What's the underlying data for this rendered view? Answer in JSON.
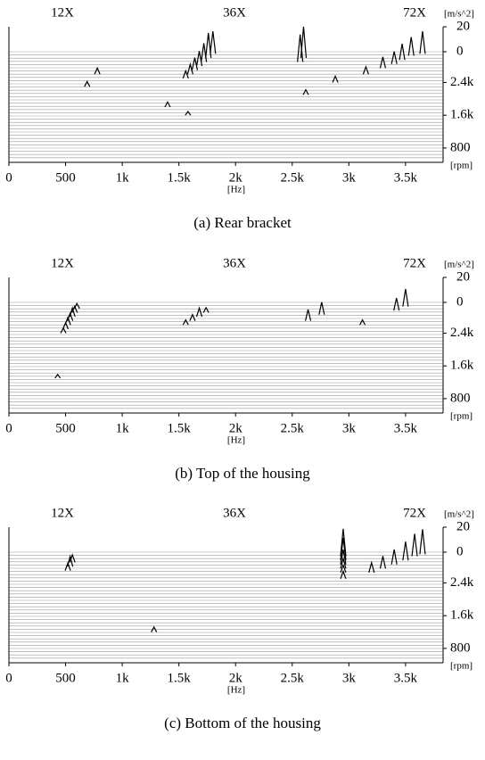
{
  "chart_data": [
    {
      "type": "waterfall",
      "caption": "(a)  Rear  bracket",
      "x_label": "[Hz]",
      "y_label": "[rpm]",
      "y2_label": "[m/s^2]",
      "order_labels": [
        "12X",
        "36X",
        "72X"
      ],
      "xlim": [
        0,
        3800
      ],
      "xticks": [
        0,
        500,
        {
          "value": 1000,
          "label": "1k"
        },
        {
          "value": 1500,
          "label": "1.5k"
        },
        {
          "value": 2000,
          "label": "2k"
        },
        {
          "value": 2500,
          "label": "2.5k"
        },
        {
          "value": 3000,
          "label": "3k"
        },
        {
          "value": 3500,
          "label": "3.5k"
        }
      ],
      "ylim": [
        450,
        3150
      ],
      "yticks": [
        800,
        {
          "value": 1600,
          "label": "1.6k"
        },
        {
          "value": 2400,
          "label": "2.4k"
        }
      ],
      "y2lim": [
        0,
        20
      ],
      "y2ticks": [
        0,
        20
      ],
      "peaks": {
        "rpm": [
          3100,
          3000,
          2900,
          2800,
          2700,
          2600,
          2500,
          3100,
          3050,
          2950,
          2850,
          2750,
          2600,
          2400,
          2100,
          1800,
          1600,
          3000,
          2900,
          2600,
          2300
        ],
        "hz": [
          1800,
          1760,
          1720,
          1680,
          1640,
          1600,
          1560,
          3650,
          3550,
          3470,
          3400,
          3300,
          3150,
          2880,
          2620,
          1400,
          1580,
          2600,
          2570,
          780,
          690
        ],
        "amp": [
          18,
          20,
          15,
          12,
          10,
          8,
          6,
          18,
          15,
          13,
          10,
          9,
          6,
          5,
          4,
          4,
          3,
          25,
          22,
          5,
          4
        ]
      },
      "color": "#000000"
    },
    {
      "type": "waterfall",
      "caption": "(b)  Top  of  the  housing",
      "x_label": "[Hz]",
      "y_label": "[rpm]",
      "y2_label": "[m/s^2]",
      "order_labels": [
        "12X",
        "36X",
        "72X"
      ],
      "xlim": [
        0,
        3800
      ],
      "xticks": [
        0,
        500,
        {
          "value": 1000,
          "label": "1k"
        },
        {
          "value": 1500,
          "label": "1.5k"
        },
        {
          "value": 2000,
          "label": "2k"
        },
        {
          "value": 2500,
          "label": "2.5k"
        },
        {
          "value": 3000,
          "label": "3k"
        },
        {
          "value": 3500,
          "label": "3.5k"
        }
      ],
      "ylim": [
        450,
        3150
      ],
      "yticks": [
        800,
        {
          "value": 1600,
          "label": "1.6k"
        },
        {
          "value": 2400,
          "label": "2.4k"
        }
      ],
      "y2lim": [
        0,
        20
      ],
      "y2ticks": [
        0,
        20
      ],
      "peaks": {
        "rpm": [
          3000,
          2900,
          2800,
          2700,
          2600,
          2500,
          2400,
          2900,
          2800,
          2700,
          2600,
          3050,
          2950,
          2850,
          2700,
          2600,
          1300
        ],
        "hz": [
          600,
          580,
          560,
          540,
          520,
          500,
          480,
          1740,
          1680,
          1620,
          1560,
          3500,
          3420,
          2760,
          2640,
          3120,
          430
        ],
        "amp": [
          4,
          5,
          7,
          6,
          6,
          5,
          4,
          4,
          7,
          5,
          4,
          14,
          10,
          10,
          9,
          4,
          3
        ]
      },
      "color": "#000000"
    },
    {
      "type": "waterfall",
      "caption": "(c)  Bottom  of  the  housing",
      "x_label": "[Hz]",
      "y_label": "[rpm]",
      "y2_label": "[m/s^2]",
      "order_labels": [
        "12X",
        "36X",
        "72X"
      ],
      "xlim": [
        0,
        3800
      ],
      "xticks": [
        0,
        500,
        {
          "value": 1000,
          "label": "1k"
        },
        {
          "value": 1500,
          "label": "1.5k"
        },
        {
          "value": 2000,
          "label": "2k"
        },
        {
          "value": 2500,
          "label": "2.5k"
        },
        {
          "value": 3000,
          "label": "3k"
        },
        {
          "value": 3500,
          "label": "3.5k"
        }
      ],
      "ylim": [
        450,
        3150
      ],
      "yticks": [
        800,
        {
          "value": 1600,
          "label": "1.6k"
        },
        {
          "value": 2400,
          "label": "2.4k"
        }
      ],
      "y2lim": [
        0,
        20
      ],
      "y2ticks": [
        0,
        20
      ],
      "peaks": {
        "rpm": [
          3100,
          3050,
          2950,
          2850,
          2750,
          2650,
          2500,
          3050,
          2950,
          2850,
          2750,
          2650,
          2900,
          2800,
          2700,
          1200
        ],
        "hz": [
          3650,
          3580,
          3500,
          3400,
          3300,
          3200,
          2950,
          2950,
          2950,
          2950,
          2950,
          2950,
          560,
          540,
          520,
          1280
        ],
        "amp": [
          20,
          18,
          15,
          12,
          10,
          8,
          6,
          22,
          18,
          12,
          8,
          6,
          6,
          8,
          6,
          4
        ]
      },
      "color": "#000000"
    }
  ]
}
